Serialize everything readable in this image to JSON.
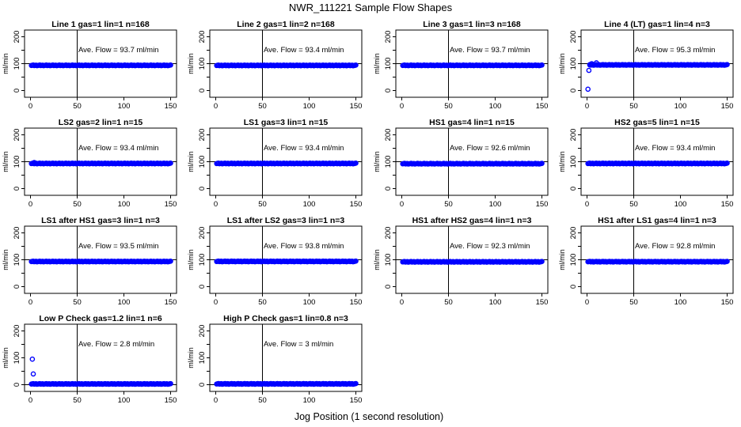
{
  "figure": {
    "title": "NWR_111221  Sample Flow Shapes",
    "xlabel": "Jog Position (1 second resolution)"
  },
  "chart_data": [
    {
      "type": "scatter",
      "title": "Line 1 gas=1 lin=1 n=168",
      "ylabel": "ml/min",
      "xlim": [
        0,
        150
      ],
      "ylim": [
        0,
        200
      ],
      "x_ticks": [
        0,
        50,
        100,
        150
      ],
      "y_ticks": [
        0,
        100,
        200
      ],
      "vline": 50,
      "hline": 100,
      "annotation": "Ave. Flow = 93.7  ml/min",
      "mean": 93.7,
      "x_range": [
        1,
        150
      ],
      "outliers": []
    },
    {
      "type": "scatter",
      "title": "Line 2 gas=1 lin=2 n=168",
      "ylabel": "ml/min",
      "xlim": [
        0,
        150
      ],
      "ylim": [
        0,
        200
      ],
      "x_ticks": [
        0,
        50,
        100,
        150
      ],
      "y_ticks": [
        0,
        100,
        200
      ],
      "vline": 50,
      "hline": 100,
      "annotation": "Ave. Flow = 93.4  ml/min",
      "mean": 93.4,
      "x_range": [
        1,
        150
      ],
      "outliers": []
    },
    {
      "type": "scatter",
      "title": "Line 3 gas=1 lin=3 n=168",
      "ylabel": "ml/min",
      "xlim": [
        0,
        150
      ],
      "ylim": [
        0,
        200
      ],
      "x_ticks": [
        0,
        50,
        100,
        150
      ],
      "y_ticks": [
        0,
        100,
        200
      ],
      "vline": 50,
      "hline": 100,
      "annotation": "Ave. Flow = 93.7  ml/min",
      "mean": 93.7,
      "x_range": [
        1,
        150
      ],
      "outliers": []
    },
    {
      "type": "scatter",
      "title": "Line 4 (LT) gas=1 lin=4 n=3",
      "ylabel": "ml/min",
      "xlim": [
        0,
        150
      ],
      "ylim": [
        0,
        200
      ],
      "x_ticks": [
        0,
        50,
        100,
        150
      ],
      "y_ticks": [
        0,
        100,
        200
      ],
      "vline": 50,
      "hline": 100,
      "annotation": "Ave. Flow = 95.3  ml/min",
      "mean": 95.3,
      "x_range": [
        3,
        150
      ],
      "outliers": [
        [
          1,
          5
        ],
        [
          2,
          75
        ],
        [
          3,
          95
        ],
        [
          5,
          100
        ],
        [
          10,
          103
        ]
      ]
    },
    {
      "type": "scatter",
      "title": "LS2 gas=2 lin=1 n=15",
      "ylabel": "ml/min",
      "xlim": [
        0,
        150
      ],
      "ylim": [
        0,
        200
      ],
      "x_ticks": [
        0,
        50,
        100,
        150
      ],
      "y_ticks": [
        0,
        100,
        200
      ],
      "vline": 50,
      "hline": 100,
      "annotation": "Ave. Flow = 93.4  ml/min",
      "mean": 93.4,
      "x_range": [
        1,
        150
      ],
      "outliers": [
        [
          4,
          97
        ]
      ]
    },
    {
      "type": "scatter",
      "title": "LS1 gas=3 lin=1 n=15",
      "ylabel": "ml/min",
      "xlim": [
        0,
        150
      ],
      "ylim": [
        0,
        200
      ],
      "x_ticks": [
        0,
        50,
        100,
        150
      ],
      "y_ticks": [
        0,
        100,
        200
      ],
      "vline": 50,
      "hline": 100,
      "annotation": "Ave. Flow = 93.4  ml/min",
      "mean": 93.4,
      "x_range": [
        1,
        150
      ],
      "outliers": []
    },
    {
      "type": "scatter",
      "title": "HS1 gas=4 lin=1 n=15",
      "ylabel": "ml/min",
      "xlim": [
        0,
        150
      ],
      "ylim": [
        0,
        200
      ],
      "x_ticks": [
        0,
        50,
        100,
        150
      ],
      "y_ticks": [
        0,
        100,
        200
      ],
      "vline": 50,
      "hline": 100,
      "annotation": "Ave. Flow = 92.6  ml/min",
      "mean": 92.6,
      "x_range": [
        1,
        150
      ],
      "outliers": []
    },
    {
      "type": "scatter",
      "title": "HS2 gas=5 lin=1 n=15",
      "ylabel": "ml/min",
      "xlim": [
        0,
        150
      ],
      "ylim": [
        0,
        200
      ],
      "x_ticks": [
        0,
        50,
        100,
        150
      ],
      "y_ticks": [
        0,
        100,
        200
      ],
      "vline": 50,
      "hline": 100,
      "annotation": "Ave. Flow = 93.4  ml/min",
      "mean": 93.4,
      "x_range": [
        1,
        150
      ],
      "outliers": []
    },
    {
      "type": "scatter",
      "title": "LS1 after HS1 gas=3 lin=1 n=3",
      "ylabel": "ml/min",
      "xlim": [
        0,
        150
      ],
      "ylim": [
        0,
        200
      ],
      "x_ticks": [
        0,
        50,
        100,
        150
      ],
      "y_ticks": [
        0,
        100,
        200
      ],
      "vline": 50,
      "hline": 100,
      "annotation": "Ave. Flow = 93.5  ml/min",
      "mean": 93.5,
      "x_range": [
        1,
        150
      ],
      "outliers": []
    },
    {
      "type": "scatter",
      "title": "LS1 after LS2 gas=3 lin=1 n=3",
      "ylabel": "ml/min",
      "xlim": [
        0,
        150
      ],
      "ylim": [
        0,
        200
      ],
      "x_ticks": [
        0,
        50,
        100,
        150
      ],
      "y_ticks": [
        0,
        100,
        200
      ],
      "vline": 50,
      "hline": 100,
      "annotation": "Ave. Flow = 93.8  ml/min",
      "mean": 93.8,
      "x_range": [
        1,
        150
      ],
      "outliers": []
    },
    {
      "type": "scatter",
      "title": "HS1 after HS2 gas=4 lin=1 n=3",
      "ylabel": "ml/min",
      "xlim": [
        0,
        150
      ],
      "ylim": [
        0,
        200
      ],
      "x_ticks": [
        0,
        50,
        100,
        150
      ],
      "y_ticks": [
        0,
        100,
        200
      ],
      "vline": 50,
      "hline": 100,
      "annotation": "Ave. Flow = 92.3  ml/min",
      "mean": 92.3,
      "x_range": [
        1,
        150
      ],
      "outliers": []
    },
    {
      "type": "scatter",
      "title": "HS1 after LS1 gas=4 lin=1 n=3",
      "ylabel": "ml/min",
      "xlim": [
        0,
        150
      ],
      "ylim": [
        0,
        200
      ],
      "x_ticks": [
        0,
        50,
        100,
        150
      ],
      "y_ticks": [
        0,
        100,
        200
      ],
      "vline": 50,
      "hline": 100,
      "annotation": "Ave. Flow = 92.8  ml/min",
      "mean": 92.8,
      "x_range": [
        1,
        150
      ],
      "outliers": []
    },
    {
      "type": "scatter",
      "title": "Low P Check gas=1.2 lin=1 n=6",
      "ylabel": "ml/min",
      "xlim": [
        0,
        150
      ],
      "ylim": [
        0,
        200
      ],
      "x_ticks": [
        0,
        50,
        100,
        150
      ],
      "y_ticks": [
        0,
        100,
        200
      ],
      "vline": 50,
      "hline": 0,
      "annotation": "Ave. Flow = 2.8  ml/min",
      "mean": 2.8,
      "x_range": [
        1,
        150
      ],
      "outliers": [
        [
          2,
          95
        ],
        [
          3,
          40
        ]
      ]
    },
    {
      "type": "scatter",
      "title": "High P Check gas=1 lin=0.8 n=3",
      "ylabel": "ml/min",
      "xlim": [
        0,
        150
      ],
      "ylim": [
        0,
        200
      ],
      "x_ticks": [
        0,
        50,
        100,
        150
      ],
      "y_ticks": [
        0,
        100,
        200
      ],
      "vline": 50,
      "hline": 0,
      "annotation": "Ave. Flow = 3  ml/min",
      "mean": 3,
      "x_range": [
        1,
        150
      ],
      "outliers": []
    }
  ],
  "colors": {
    "points": "#0000ff",
    "axes": "#000000"
  }
}
